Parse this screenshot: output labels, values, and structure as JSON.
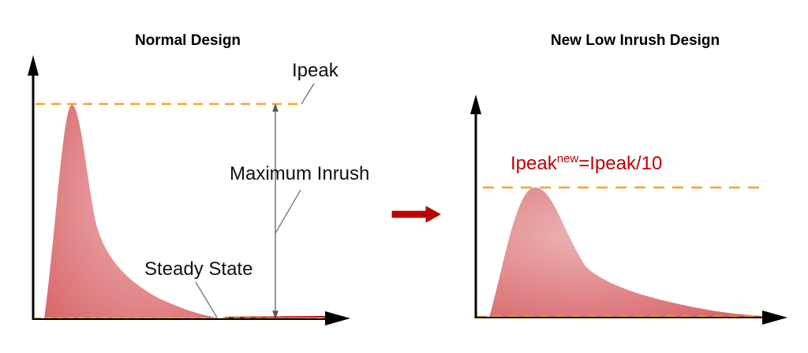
{
  "left_panel": {
    "title": "Normal Design",
    "peak_label": "Ipeak",
    "max_inrush_label": "Maximum Inrush",
    "steady_state_label": "Steady State"
  },
  "right_panel": {
    "title": "New Low Inrush Design",
    "peak_label_main": "Ipeak",
    "peak_label_sup": "new",
    "peak_label_rest": "=Ipeak/10"
  },
  "colors": {
    "curve_fill": "#e07d80",
    "peak_line": "#f5a623",
    "arrow": "#c00000",
    "axis": "#000000",
    "peak_text": "#c00000"
  }
}
